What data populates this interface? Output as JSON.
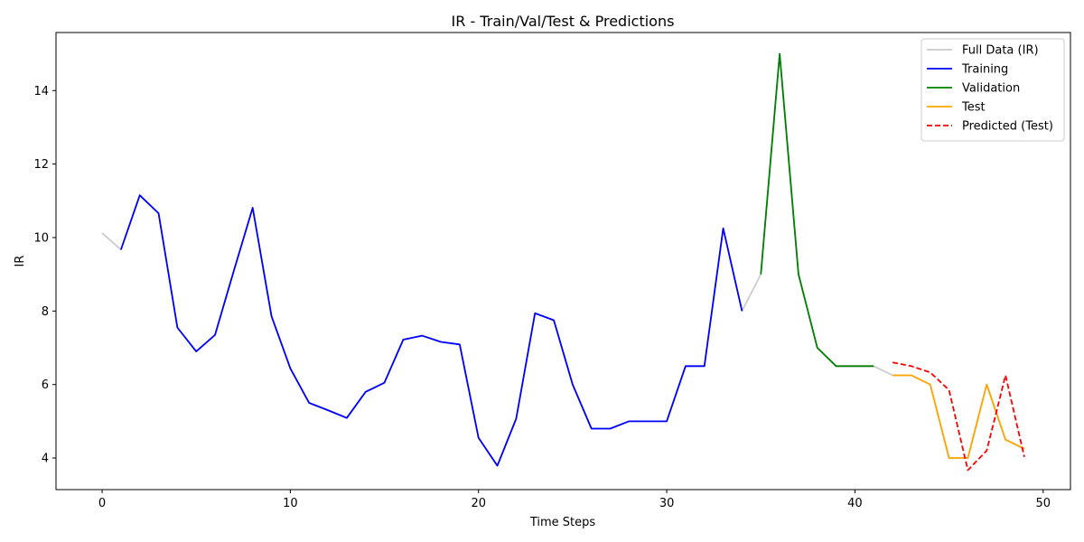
{
  "chart_data": {
    "type": "line",
    "title": "IR - Train/Val/Test & Predictions",
    "xlabel": "Time Steps",
    "ylabel": "IR",
    "xlim": [
      -2.45,
      51.45
    ],
    "ylim": [
      3.14,
      15.58
    ],
    "xticks": [
      0,
      10,
      20,
      30,
      40,
      50
    ],
    "yticks": [
      4,
      6,
      8,
      10,
      12,
      14
    ],
    "grid": false,
    "legend_position": "top-right",
    "series": [
      {
        "name": "Full Data (IR)",
        "color": "#cccccc",
        "style": "solid",
        "x": [
          0,
          1,
          2,
          3,
          4,
          5,
          6,
          7,
          8,
          9,
          10,
          11,
          12,
          13,
          14,
          15,
          16,
          17,
          18,
          19,
          20,
          21,
          22,
          23,
          24,
          25,
          26,
          27,
          28,
          29,
          30,
          31,
          32,
          33,
          34,
          35,
          36,
          37,
          38,
          39,
          40,
          41,
          42,
          43,
          44,
          45,
          46,
          47,
          48,
          49
        ],
        "y": [
          10.12,
          9.67,
          11.15,
          10.66,
          7.55,
          6.9,
          7.35,
          9.1,
          10.81,
          7.86,
          6.44,
          5.5,
          5.3,
          5.09,
          5.8,
          6.05,
          7.22,
          7.33,
          7.16,
          7.09,
          4.55,
          3.79,
          5.07,
          7.94,
          7.75,
          6.0,
          4.8,
          4.8,
          5.0,
          5.0,
          5.0,
          6.5,
          6.5,
          10.25,
          8.0,
          9.0,
          15.0,
          9.0,
          7.0,
          6.5,
          6.5,
          6.5,
          6.25,
          6.25,
          6.0,
          4.0,
          4.0,
          6.0,
          4.5,
          4.25
        ]
      },
      {
        "name": "Training",
        "color": "#0000ff",
        "style": "solid",
        "x": [
          1,
          2,
          3,
          4,
          5,
          6,
          7,
          8,
          9,
          10,
          11,
          12,
          13,
          14,
          15,
          16,
          17,
          18,
          19,
          20,
          21,
          22,
          23,
          24,
          25,
          26,
          27,
          28,
          29,
          30,
          31,
          32,
          33,
          34
        ],
        "y": [
          9.67,
          11.15,
          10.66,
          7.55,
          6.9,
          7.35,
          9.1,
          10.81,
          7.86,
          6.44,
          5.5,
          5.3,
          5.09,
          5.8,
          6.05,
          7.22,
          7.33,
          7.16,
          7.09,
          4.55,
          3.79,
          5.07,
          7.94,
          7.75,
          6.0,
          4.8,
          4.8,
          5.0,
          5.0,
          5.0,
          6.5,
          6.5,
          10.25,
          8.0
        ]
      },
      {
        "name": "Validation",
        "color": "#008000",
        "style": "solid",
        "x": [
          35,
          36,
          37,
          38,
          39,
          40,
          41
        ],
        "y": [
          9.0,
          15.0,
          9.0,
          7.0,
          6.5,
          6.5,
          6.5
        ]
      },
      {
        "name": "Test",
        "color": "#ffa500",
        "style": "solid",
        "x": [
          42,
          43,
          44,
          45,
          46,
          47,
          48,
          49
        ],
        "y": [
          6.25,
          6.25,
          6.0,
          4.0,
          4.0,
          6.0,
          4.5,
          4.25
        ]
      },
      {
        "name": "Predicted (Test)",
        "color": "#ff0000",
        "style": "dashed",
        "x": [
          42,
          43,
          44,
          45,
          46,
          47,
          48,
          49
        ],
        "y": [
          6.6,
          6.5,
          6.33,
          5.85,
          3.67,
          4.2,
          6.25,
          4.03
        ]
      }
    ]
  }
}
